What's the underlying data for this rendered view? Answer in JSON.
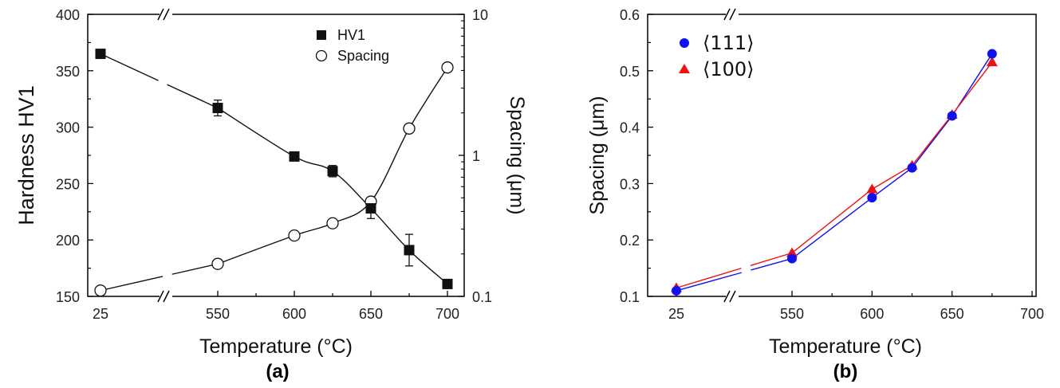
{
  "chart_data": [
    {
      "type": "line",
      "panel_label": "(a)",
      "xlabel": "Temperature (°C)",
      "ylabel": "Hardness HV1",
      "y2label": "Spacing (μm)",
      "x_ticks": [
        "25",
        "550",
        "600",
        "650",
        "700"
      ],
      "y_ticks": [
        "150",
        "200",
        "250",
        "300",
        "350",
        "400"
      ],
      "y2_ticks": [
        "0.1",
        "1",
        "10"
      ],
      "ylim": [
        150,
        400
      ],
      "y2lim": [
        0.1,
        10
      ],
      "y2_scale": "log",
      "x_axis_break": true,
      "legend_position": "top-center",
      "series": [
        {
          "name": "HV1",
          "axis": "left",
          "marker": "filled-square",
          "x": [
            25,
            550,
            600,
            625,
            650,
            675,
            700
          ],
          "y": [
            365,
            317,
            274,
            261,
            228,
            191,
            161
          ],
          "error": [
            0,
            7,
            0,
            5,
            9,
            14,
            3
          ]
        },
        {
          "name": "Spacing",
          "axis": "right",
          "marker": "open-circle",
          "x": [
            25,
            550,
            600,
            625,
            650,
            675,
            700
          ],
          "y": [
            0.11,
            0.17,
            0.27,
            0.33,
            0.47,
            1.55,
            4.2
          ]
        }
      ]
    },
    {
      "type": "line",
      "panel_label": "(b)",
      "xlabel": "Temperature (°C)",
      "ylabel": "Spacing (μm)",
      "x_ticks": [
        "25",
        "550",
        "600",
        "650",
        "700"
      ],
      "y_ticks": [
        "0.1",
        "0.2",
        "0.3",
        "0.4",
        "0.5",
        "0.6"
      ],
      "ylim": [
        0.1,
        0.6
      ],
      "x_axis_break": true,
      "legend_position": "top-left",
      "series": [
        {
          "name": "⟨111⟩",
          "color": "#1111ee",
          "marker": "circle",
          "x": [
            25,
            550,
            600,
            625,
            650,
            675
          ],
          "y": [
            0.11,
            0.167,
            0.275,
            0.328,
            0.42,
            0.53
          ]
        },
        {
          "name": "⟨100⟩",
          "color": "#ee1111",
          "marker": "triangle",
          "x": [
            25,
            550,
            600,
            625,
            650,
            675
          ],
          "y": [
            0.115,
            0.177,
            0.29,
            0.332,
            0.422,
            0.515
          ]
        }
      ]
    }
  ]
}
